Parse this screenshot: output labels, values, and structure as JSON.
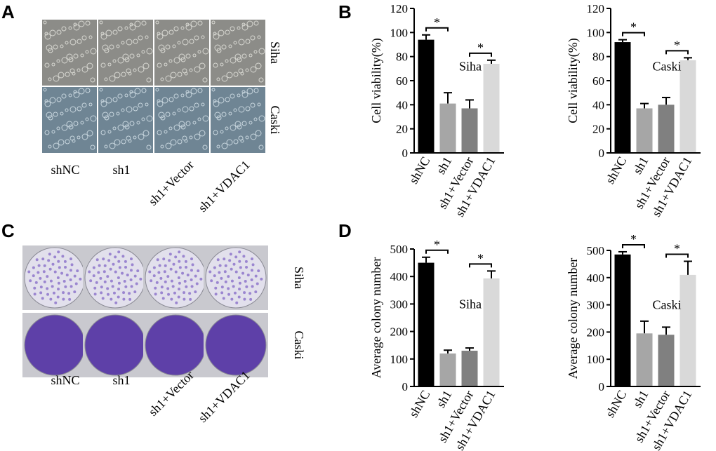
{
  "panels": {
    "A": {
      "letter": "A",
      "rows": [
        "Siha",
        "Caski"
      ],
      "columns": [
        "shNC",
        "sh1",
        "sh1+Vector",
        "sh1+VDAC1"
      ]
    },
    "B": {
      "letter": "B"
    },
    "C": {
      "letter": "C",
      "rows": [
        "Siha",
        "Caski"
      ],
      "columns": [
        "shNC",
        "sh1",
        "sh1+Vector",
        "sh1+VDAC1"
      ]
    },
    "D": {
      "letter": "D"
    }
  },
  "chart_data": [
    {
      "type": "bar",
      "ylabel": "Cell viability(%)",
      "inset_label": "Siha",
      "categories": [
        "shNC",
        "sh1",
        "sh1+Vector",
        "sh1+VDAC1"
      ],
      "values": [
        94,
        41,
        37,
        74
      ],
      "errors": [
        4,
        9,
        7,
        3
      ],
      "colors": [
        "#000000",
        "#a6a6a6",
        "#808080",
        "#d9d9d9"
      ],
      "ylim": [
        0,
        120
      ],
      "yticks": [
        0,
        20,
        40,
        60,
        80,
        100,
        120
      ],
      "annotations": [
        "*",
        "*"
      ]
    },
    {
      "type": "bar",
      "ylabel": "Cell viability(%)",
      "inset_label": "Caski",
      "categories": [
        "shNC",
        "sh1",
        "sh1+Vector",
        "sh1+VDAC1"
      ],
      "values": [
        92,
        37,
        40,
        77
      ],
      "errors": [
        2,
        4,
        6,
        2
      ],
      "colors": [
        "#000000",
        "#a6a6a6",
        "#808080",
        "#d9d9d9"
      ],
      "ylim": [
        0,
        120
      ],
      "yticks": [
        0,
        20,
        40,
        60,
        80,
        100,
        120
      ],
      "annotations": [
        "*",
        "*"
      ]
    },
    {
      "type": "bar",
      "ylabel": "Average colony number",
      "inset_label": "Siha",
      "categories": [
        "shNC",
        "sh1",
        "sh1+Vector",
        "sh1+VDAC1"
      ],
      "values": [
        450,
        120,
        130,
        393
      ],
      "errors": [
        20,
        12,
        10,
        27
      ],
      "colors": [
        "#000000",
        "#a6a6a6",
        "#808080",
        "#d9d9d9"
      ],
      "ylim": [
        0,
        500
      ],
      "yticks": [
        0,
        100,
        200,
        300,
        400,
        500
      ],
      "annotations": [
        "*",
        "*"
      ]
    },
    {
      "type": "bar",
      "ylabel": "Average colony number",
      "inset_label": "Caski",
      "categories": [
        "shNC",
        "sh1",
        "sh1+Vector",
        "sh1+VDAC1"
      ],
      "values": [
        485,
        195,
        190,
        410
      ],
      "errors": [
        10,
        45,
        28,
        50
      ],
      "colors": [
        "#000000",
        "#a6a6a6",
        "#808080",
        "#d9d9d9"
      ],
      "ylim": [
        0,
        500
      ],
      "yticks": [
        0,
        100,
        200,
        300,
        400,
        500
      ],
      "annotations": [
        "*",
        "*"
      ]
    }
  ]
}
